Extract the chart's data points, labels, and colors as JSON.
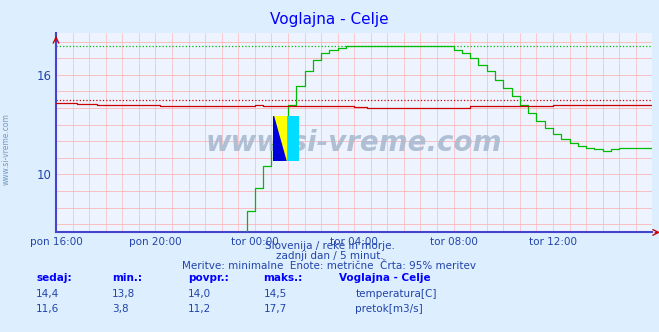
{
  "title": "Voglajna - Celje",
  "fig_bg_color": "#ddeeff",
  "plot_bg_color": "#eef4ff",
  "grid_color": "#ffaaaa",
  "x_labels": [
    "pon 16:00",
    "pon 20:00",
    "tor 00:00",
    "tor 04:00",
    "tor 08:00",
    "tor 12:00"
  ],
  "x_ticks_pos": [
    0,
    48,
    96,
    144,
    192,
    240
  ],
  "x_max": 288,
  "y_min": 6.5,
  "y_max": 18.5,
  "y_ticks": [
    10,
    16
  ],
  "temp_color": "#cc0000",
  "flow_color": "#00bb00",
  "dotted_color_temp": "#cc0000",
  "dotted_color_flow": "#00bb00",
  "temp_max": 14.5,
  "temp_min": 13.8,
  "flow_max": 17.7,
  "flow_min": 3.8,
  "blue_axis": "#4444cc",
  "text_color": "#2244aa",
  "subtitle1": "Slovenija / reke in morje.",
  "subtitle2": "zadnji dan / 5 minut.",
  "subtitle3": "Meritve: minimalne  Enote: metrične  Črta: 95% meritev",
  "watermark": "www.si-vreme.com",
  "legend_title": "Voglajna - Celje",
  "legend_temp": "temperatura[C]",
  "legend_flow": "pretok[m3/s]",
  "label_sedaj": "sedaj:",
  "label_min": "min.:",
  "label_povpr": "povpr.:",
  "label_maks": "maks.:",
  "val_temp_now": "14,4",
  "val_temp_min": "13,8",
  "val_temp_avg": "14,0",
  "val_temp_max": "14,5",
  "val_flow_now": "11,6",
  "val_flow_min": "3,8",
  "val_flow_avg": "11,2",
  "val_flow_max": "17,7",
  "n_points": 289
}
